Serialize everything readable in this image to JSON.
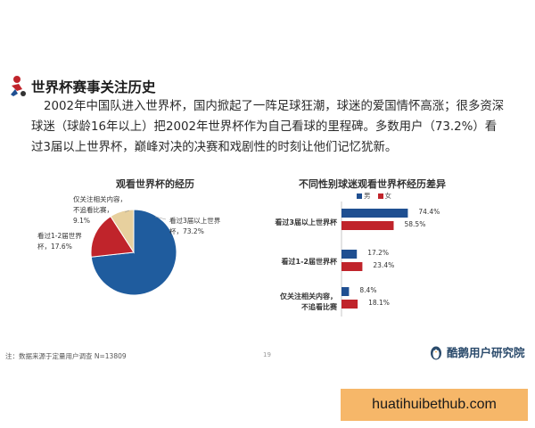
{
  "header": {
    "title": "世界杯赛事关注历史",
    "intro_lines": [
      "2002年中国队进入世界杯，国内掀起了一阵足球狂潮，球迷的爱国情怀高涨；很多资深",
      "球迷（球龄16年以上）把2002年世界杯作为自己看球的里程碑。多数用户（73.2%）看",
      "过3届以上世界杯，巅峰对决的决赛和戏剧性的时刻让他们记忆犹新。"
    ]
  },
  "colors": {
    "blue": "#1f5c9e",
    "red": "#c0242b",
    "beige": "#e7d09e",
    "male": "#1f4f91",
    "female": "#c0242b",
    "title_icon": "#c0242b"
  },
  "chart_data": [
    {
      "type": "pie",
      "title": "观看世界杯的经历",
      "slices": [
        {
          "label": "看过3届以上世界杯，73.2%",
          "value": 73.2,
          "color": "#1f5c9e"
        },
        {
          "label": "看过1-2届世界杯，17.6%",
          "value": 17.6,
          "color": "#c0242b"
        },
        {
          "label": "仅关注相关内容，不追看比赛，9.1%",
          "value": 9.1,
          "color": "#e7d09e"
        }
      ]
    },
    {
      "type": "bar",
      "orientation": "horizontal",
      "title": "不同性别球迷观看世界杯经历差异",
      "categories": [
        "看过3届以上世界杯",
        "看过1-2届世界杯",
        "仅关注相关内容，不追看比赛"
      ],
      "series": [
        {
          "name": "男",
          "values": [
            74.4,
            17.2,
            8.4
          ],
          "color": "#1f4f91"
        },
        {
          "name": "女",
          "values": [
            58.5,
            23.4,
            18.1
          ],
          "color": "#c0242b"
        }
      ],
      "value_labels": [
        [
          "74.4%",
          "17.2%",
          "8.4%"
        ],
        [
          "58.5%",
          "23.4%",
          "18.1%"
        ]
      ],
      "legend": "top",
      "xlim": [
        0,
        100
      ]
    }
  ],
  "footer": {
    "note": "注：数据来源于定量用户调查 N=13809",
    "page_number": "19",
    "brand": "酷鹅用户研究院"
  },
  "watermark": "huatihuibethub.com",
  "icons": {
    "title_icon": "football-kick-icon",
    "brand_logo": "penguin-logo-icon"
  }
}
